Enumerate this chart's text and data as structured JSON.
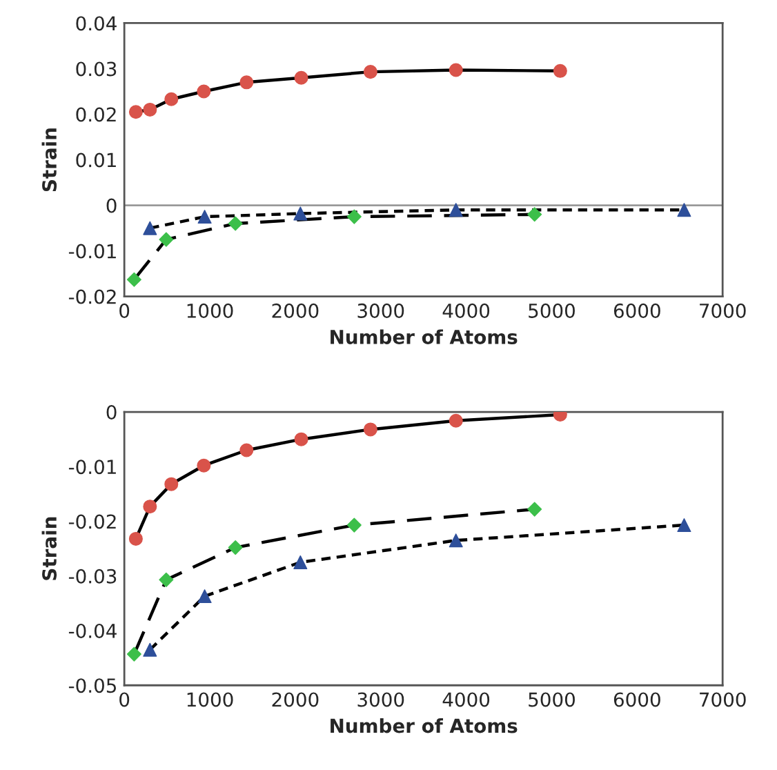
{
  "chart_data": [
    {
      "type": "line",
      "xlabel": "Number of Atoms",
      "ylabel": "Strain",
      "xlim": [
        0,
        7000
      ],
      "xticks": [
        0,
        1000,
        2000,
        3000,
        4000,
        5000,
        6000,
        7000
      ],
      "ylim": [
        -0.02,
        0.04
      ],
      "yticks": [
        -0.02,
        -0.01,
        0,
        0.01,
        0.02,
        0.03,
        0.04
      ],
      "grid": false,
      "ref_lines": [
        {
          "axis": "y",
          "value": 0,
          "color": "#999999",
          "line_style": "solid"
        }
      ],
      "series": [
        {
          "color": "#d9534a",
          "marker": "circle",
          "line_style": "solid",
          "x": [
            135,
            300,
            550,
            930,
            1430,
            2070,
            2880,
            3880,
            5100
          ],
          "values": [
            0.0205,
            0.021,
            0.0233,
            0.025,
            0.027,
            0.028,
            0.0293,
            0.0297,
            0.0295
          ]
        },
        {
          "color": "#3cbf4a",
          "marker": "diamond",
          "line_style": "dashed",
          "x": [
            115,
            490,
            1300,
            2690,
            4800
          ],
          "values": [
            -0.0163,
            -0.0075,
            -0.004,
            -0.0025,
            -0.002
          ]
        },
        {
          "color": "#2e4f9a",
          "marker": "triangle",
          "line_style": "dotted",
          "x": [
            300,
            940,
            2060,
            3880,
            6550
          ],
          "values": [
            -0.005,
            -0.0025,
            -0.0018,
            -0.001,
            -0.001
          ]
        }
      ]
    },
    {
      "type": "line",
      "xlabel": "Number of Atoms",
      "ylabel": "Strain",
      "xlim": [
        0,
        7000
      ],
      "xticks": [
        0,
        1000,
        2000,
        3000,
        4000,
        5000,
        6000,
        7000
      ],
      "ylim": [
        -0.05,
        0
      ],
      "yticks": [
        -0.05,
        -0.04,
        -0.03,
        -0.02,
        -0.01,
        0
      ],
      "grid": false,
      "series": [
        {
          "color": "#d9534a",
          "marker": "circle",
          "line_style": "solid",
          "x": [
            135,
            300,
            550,
            930,
            1430,
            2070,
            2880,
            3880,
            5100
          ],
          "values": [
            -0.0232,
            -0.0173,
            -0.0132,
            -0.0098,
            -0.007,
            -0.005,
            -0.0032,
            -0.0016,
            -0.0005
          ]
        },
        {
          "color": "#3cbf4a",
          "marker": "diamond",
          "line_style": "dashed",
          "x": [
            115,
            490,
            1300,
            2690,
            4800
          ],
          "values": [
            -0.0443,
            -0.0307,
            -0.0248,
            -0.0207,
            -0.0178
          ]
        },
        {
          "color": "#2e4f9a",
          "marker": "triangle",
          "line_style": "dotted",
          "x": [
            300,
            940,
            2060,
            3880,
            6550
          ],
          "values": [
            -0.0435,
            -0.0337,
            -0.0275,
            -0.0235,
            -0.0207
          ]
        }
      ]
    }
  ]
}
